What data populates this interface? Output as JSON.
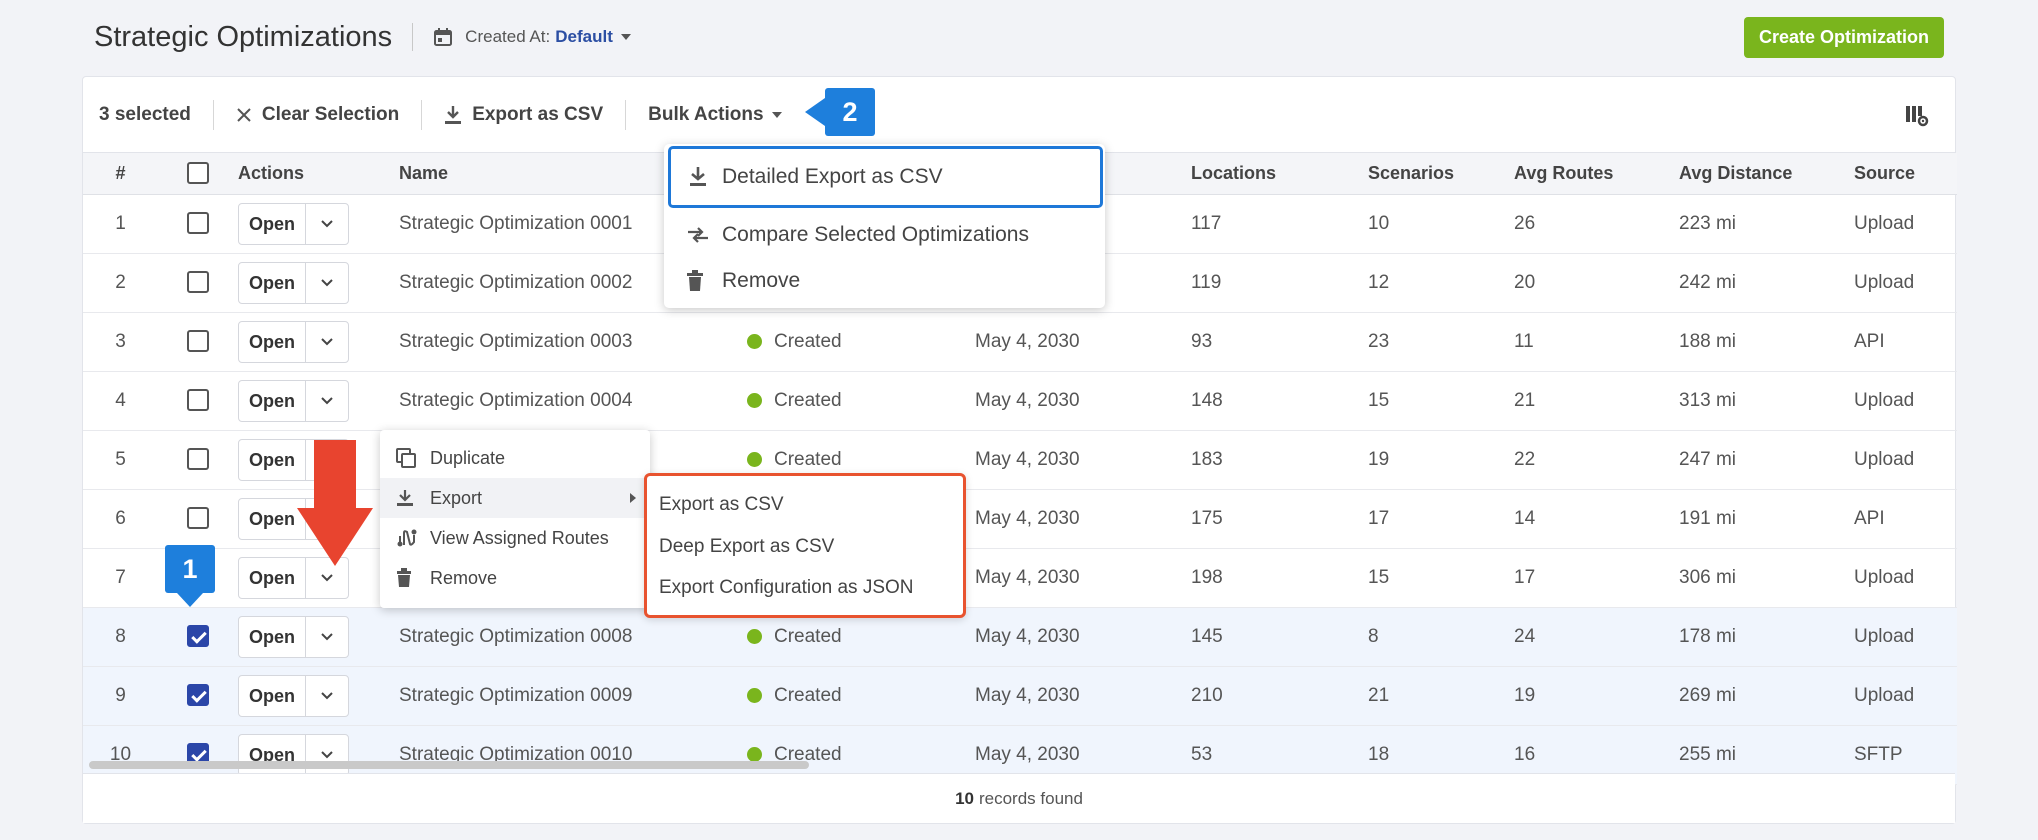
{
  "header": {
    "title": "Strategic Optimizations",
    "created_at_label": "Created At:",
    "created_at_value": "Default",
    "create_button": "Create Optimization"
  },
  "toolbar": {
    "selected_count": "3 selected",
    "clear_selection": "Clear Selection",
    "export_csv": "Export as CSV",
    "bulk_actions": "Bulk Actions"
  },
  "table": {
    "columns": [
      "#",
      "Actions",
      "Name",
      "Locations",
      "Scenarios",
      "Avg Routes",
      "Avg Distance",
      "Source"
    ],
    "open_label": "Open",
    "rows": [
      {
        "num": "1",
        "name": "Strategic Optimization 0001",
        "status": "",
        "date": "",
        "locations": "117",
        "scenarios": "10",
        "routes": "26",
        "distance": "223 mi",
        "source": "Upload",
        "checked": false
      },
      {
        "num": "2",
        "name": "Strategic Optimization 0002",
        "status": "",
        "date": "",
        "locations": "119",
        "scenarios": "12",
        "routes": "20",
        "distance": "242 mi",
        "source": "Upload",
        "checked": false
      },
      {
        "num": "3",
        "name": "Strategic Optimization 0003",
        "status": "Created",
        "date": "May 4, 2030",
        "locations": "93",
        "scenarios": "23",
        "routes": "11",
        "distance": "188 mi",
        "source": "API",
        "checked": false
      },
      {
        "num": "4",
        "name": "Strategic Optimization 0004",
        "status": "Created",
        "date": "May 4, 2030",
        "locations": "148",
        "scenarios": "15",
        "routes": "21",
        "distance": "313 mi",
        "source": "Upload",
        "checked": false
      },
      {
        "num": "5",
        "name": "",
        "status": "Created",
        "date": "May 4, 2030",
        "locations": "183",
        "scenarios": "19",
        "routes": "22",
        "distance": "247 mi",
        "source": "Upload",
        "checked": false
      },
      {
        "num": "6",
        "name": "",
        "status": "",
        "date": "May 4, 2030",
        "locations": "175",
        "scenarios": "17",
        "routes": "14",
        "distance": "191 mi",
        "source": "API",
        "checked": false
      },
      {
        "num": "7",
        "name": "",
        "status": "",
        "date": "May 4, 2030",
        "locations": "198",
        "scenarios": "15",
        "routes": "17",
        "distance": "306 mi",
        "source": "Upload",
        "checked": false
      },
      {
        "num": "8",
        "name": "Strategic Optimization 0008",
        "status": "Created",
        "date": "May 4, 2030",
        "locations": "145",
        "scenarios": "8",
        "routes": "24",
        "distance": "178 mi",
        "source": "Upload",
        "checked": true
      },
      {
        "num": "9",
        "name": "Strategic Optimization 0009",
        "status": "Created",
        "date": "May 4, 2030",
        "locations": "210",
        "scenarios": "21",
        "routes": "19",
        "distance": "269 mi",
        "source": "Upload",
        "checked": true
      },
      {
        "num": "10",
        "name": "Strategic Optimization 0010",
        "status": "Created",
        "date": "May 4, 2030",
        "locations": "53",
        "scenarios": "18",
        "routes": "16",
        "distance": "255 mi",
        "source": "SFTP",
        "checked": true
      }
    ]
  },
  "footer": {
    "count": "10",
    "label": "records found"
  },
  "bulk_menu": {
    "items": [
      "Detailed Export as CSV",
      "Compare Selected Optimizations",
      "Remove"
    ]
  },
  "row_menu": {
    "items": [
      "Duplicate",
      "Export",
      "View Assigned Routes",
      "Remove"
    ]
  },
  "export_submenu": {
    "items": [
      "Export as CSV",
      "Deep Export as CSV",
      "Export Configuration as JSON"
    ]
  },
  "callouts": {
    "step1": "1",
    "step2": "2"
  },
  "colors": {
    "accent_green": "#7ab51d",
    "selected_blue": "#2b46a8",
    "callout_blue": "#1e7fdc",
    "highlight_red": "#e8532f"
  }
}
